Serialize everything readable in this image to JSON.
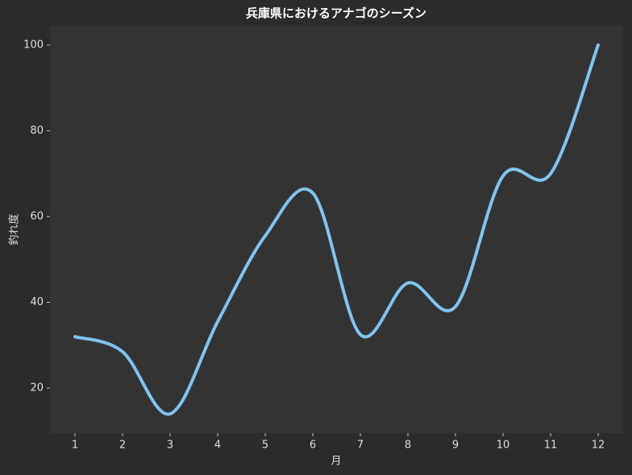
{
  "chart_data": {
    "type": "line",
    "title": "兵庫県におけるアナゴのシーズン",
    "xlabel": "月",
    "ylabel": "釣れ度",
    "x": [
      1,
      2,
      3,
      4,
      5,
      6,
      7,
      8,
      9,
      10,
      11,
      12
    ],
    "series": [
      {
        "name": "釣れ度",
        "color": "#7fc4f0",
        "values": [
          32,
          28.5,
          14,
          35.5,
          55.5,
          65.5,
          32.5,
          44.5,
          39,
          69.5,
          70,
          100
        ]
      }
    ],
    "xlim": [
      0.475,
      12.525
    ],
    "xticks": [
      1,
      2,
      3,
      4,
      5,
      6,
      7,
      8,
      9,
      10,
      11,
      12
    ],
    "ylim": [
      9.5,
      104.5
    ],
    "yticks": [
      20,
      40,
      60,
      80,
      100
    ],
    "grid": false
  }
}
